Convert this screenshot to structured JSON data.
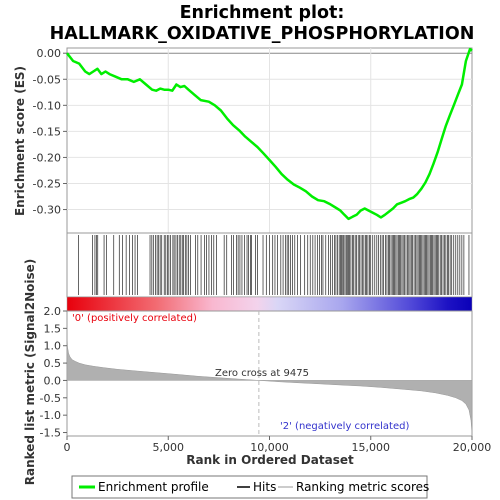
{
  "chart_data": {
    "type": "line",
    "title_lines": [
      "Enrichment plot:",
      "HALLMARK_OXIDATIVE_PHOSPHORYLATION"
    ],
    "top_panel": {
      "ylabel": "Enrichment score (ES)",
      "ylim": [
        -0.345,
        0.01
      ],
      "yticks": [
        0.0,
        -0.05,
        -0.1,
        -0.15,
        -0.2,
        -0.25,
        -0.3
      ],
      "ytick_labels": [
        "0.00",
        "-0.05",
        "-0.10",
        "-0.15",
        "-0.20",
        "-0.25",
        "-0.30"
      ],
      "grid": true,
      "series": [
        {
          "name": "Enrichment profile",
          "color": "#00ee00",
          "x": [
            0,
            300,
            600,
            900,
            1100,
            1300,
            1500,
            1700,
            1900,
            2100,
            2400,
            2700,
            3000,
            3300,
            3600,
            3900,
            4200,
            4400,
            4600,
            4800,
            5000,
            5200,
            5400,
            5600,
            5800,
            6000,
            6300,
            6600,
            7000,
            7300,
            7600,
            7900,
            8200,
            8500,
            8800,
            9100,
            9400,
            9700,
            10000,
            10300,
            10600,
            10900,
            11200,
            11500,
            11800,
            12100,
            12400,
            12700,
            13000,
            13300,
            13500,
            13700,
            13900,
            14100,
            14300,
            14500,
            14700,
            14900,
            15100,
            15300,
            15500,
            15700,
            15900,
            16100,
            16300,
            16500,
            16700,
            16900,
            17100,
            17300,
            17500,
            17700,
            17900,
            18100,
            18300,
            18500,
            18700,
            18900,
            19100,
            19300,
            19500,
            19700,
            19900,
            20000
          ],
          "y": [
            0.0,
            -0.015,
            -0.02,
            -0.035,
            -0.04,
            -0.035,
            -0.03,
            -0.04,
            -0.035,
            -0.04,
            -0.045,
            -0.05,
            -0.05,
            -0.055,
            -0.05,
            -0.06,
            -0.07,
            -0.072,
            -0.068,
            -0.07,
            -0.07,
            -0.072,
            -0.06,
            -0.065,
            -0.063,
            -0.07,
            -0.08,
            -0.09,
            -0.093,
            -0.1,
            -0.11,
            -0.125,
            -0.138,
            -0.148,
            -0.16,
            -0.17,
            -0.18,
            -0.192,
            -0.205,
            -0.218,
            -0.232,
            -0.243,
            -0.252,
            -0.258,
            -0.265,
            -0.275,
            -0.282,
            -0.284,
            -0.29,
            -0.297,
            -0.302,
            -0.31,
            -0.318,
            -0.314,
            -0.31,
            -0.302,
            -0.298,
            -0.302,
            -0.306,
            -0.31,
            -0.315,
            -0.31,
            -0.304,
            -0.298,
            -0.29,
            -0.287,
            -0.284,
            -0.28,
            -0.277,
            -0.27,
            -0.26,
            -0.248,
            -0.232,
            -0.212,
            -0.19,
            -0.165,
            -0.14,
            -0.12,
            -0.1,
            -0.08,
            -0.06,
            -0.015,
            0.008,
            0.005
          ]
        }
      ]
    },
    "hits": {
      "name": "Hits",
      "color": "#000000",
      "positions": [
        560,
        1250,
        1380,
        1460,
        1520,
        1830,
        1940,
        2310,
        2580,
        2740,
        2920,
        3080,
        3240,
        3360,
        3490,
        4100,
        4190,
        4260,
        4380,
        4450,
        4530,
        4600,
        4680,
        4800,
        4880,
        4960,
        5030,
        5110,
        5230,
        5290,
        5380,
        5460,
        5540,
        5620,
        5690,
        5760,
        5840,
        5920,
        6010,
        6100,
        6350,
        6460,
        6620,
        6780,
        6890,
        7010,
        7140,
        7250,
        7390,
        7760,
        7890,
        8120,
        8230,
        8370,
        8450,
        8540,
        8640,
        8770,
        8890,
        8960,
        9060,
        9120,
        9300,
        9400,
        9680,
        9840,
        10010,
        10160,
        10270,
        10390,
        10560,
        10670,
        10780,
        10870,
        10950,
        11040,
        11130,
        11250,
        11390,
        11540,
        11740,
        11890,
        12010,
        12140,
        12250,
        12360,
        12460,
        12560,
        12640,
        12780,
        12910,
        13020,
        13100,
        13200,
        13280,
        13350,
        13440,
        13500,
        13560,
        13620,
        13670,
        13730,
        13790,
        13840,
        13900,
        13960,
        14020,
        14090,
        14160,
        14230,
        14300,
        14380,
        14450,
        14520,
        14590,
        14660,
        14730,
        14800,
        14860,
        14930,
        15000,
        15100,
        15200,
        15300,
        15390,
        15470,
        15560,
        15640,
        15720,
        15800,
        15870,
        15930,
        16000,
        16060,
        16120,
        16180,
        16240,
        16300,
        16360,
        16420,
        16480,
        16540,
        16600,
        16670,
        16740,
        16810,
        16880,
        16940,
        17000,
        17070,
        17140,
        17210,
        17280,
        17340,
        17400,
        17460,
        17520,
        17580,
        17640,
        17700,
        17760,
        17820,
        17880,
        17940,
        18000,
        18060,
        18120,
        18180,
        18240,
        18300,
        18360,
        18430,
        18500,
        18570,
        18640,
        18710,
        18780,
        18850,
        18920,
        19000,
        19100,
        19200,
        19300,
        19400,
        19500,
        19600,
        19850
      ]
    },
    "ranked_metric": {
      "name": "Ranking metric scores",
      "ylabel": "Ranked list metric (Signal2Noise)",
      "xlabel": "Rank in Ordered Dataset",
      "xlim": [
        0,
        20000
      ],
      "ylim": [
        -1.6,
        2.0
      ],
      "yticks": [
        2.0,
        1.5,
        1.0,
        0.5,
        0.0,
        -0.5,
        -1.0,
        -1.5
      ],
      "ytick_labels": [
        "2.0",
        "1.5",
        "1.0",
        "0.5",
        "0.0",
        "-0.5",
        "-1.0",
        "-1.5"
      ],
      "xticks": [
        0,
        5000,
        10000,
        15000,
        20000
      ],
      "xtick_labels": [
        "0",
        "5,000",
        "10,000",
        "15,000",
        "20,000"
      ],
      "color": "#b0b0b0",
      "x": [
        0,
        30,
        80,
        150,
        250,
        400,
        600,
        900,
        1300,
        1800,
        2500,
        3500,
        4500,
        5500,
        6500,
        7500,
        8500,
        9475,
        10500,
        11500,
        12500,
        13500,
        14500,
        15500,
        16500,
        17500,
        18200,
        18800,
        19200,
        19500,
        19700,
        19850,
        19950,
        20000
      ],
      "y": [
        1.3,
        0.95,
        0.78,
        0.68,
        0.6,
        0.55,
        0.5,
        0.45,
        0.41,
        0.37,
        0.32,
        0.27,
        0.22,
        0.17,
        0.12,
        0.08,
        0.04,
        0.0,
        -0.04,
        -0.07,
        -0.1,
        -0.13,
        -0.16,
        -0.2,
        -0.25,
        -0.3,
        -0.36,
        -0.43,
        -0.5,
        -0.58,
        -0.68,
        -0.85,
        -1.15,
        -1.55
      ]
    },
    "zero_cross_label": "Zero cross at 9475",
    "zero_cross": 9475,
    "positive_label": "'0' (positively correlated)",
    "negative_label": "'2' (negatively correlated)",
    "legend": [
      "Enrichment profile",
      "Hits",
      "Ranking metric scores"
    ]
  }
}
